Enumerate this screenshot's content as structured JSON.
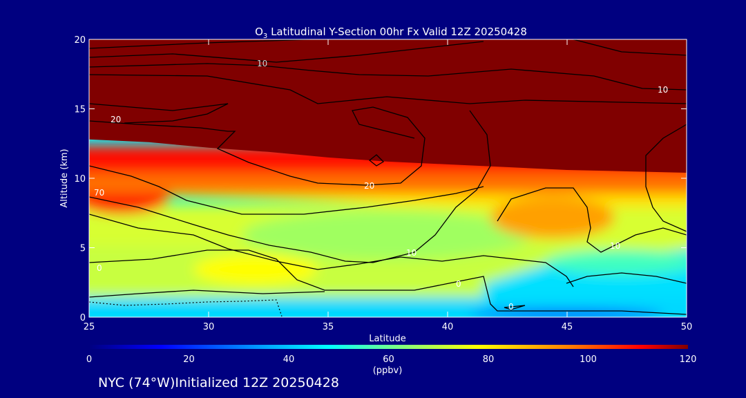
{
  "chart_data": {
    "type": "heatmap",
    "title_prefix": "O",
    "title_subscript": "3",
    "title_rest": " Latitudinal Y-Section 00hr  Fx Valid 12Z 20250428",
    "xlabel": "Latitude",
    "ylabel": "Altitude (km)",
    "xlim": [
      25,
      50
    ],
    "ylim": [
      0,
      20
    ],
    "xticks": [
      "25",
      "30",
      "35",
      "40",
      "45",
      "50"
    ],
    "yticks": [
      "0",
      "5",
      "10",
      "15",
      "20"
    ],
    "colorbar": {
      "min": 0,
      "max": 120,
      "ticks": [
        "0",
        "20",
        "40",
        "60",
        "80",
        "100",
        "120"
      ],
      "unit": "(ppbv)"
    },
    "tropopause_km": [
      12.8,
      12.6,
      12.2,
      11.9,
      11.5,
      11.2,
      11.0,
      10.8,
      10.6,
      10.5,
      10.4
    ],
    "tropopause_lat": [
      25,
      27.5,
      30,
      32.5,
      35,
      37.5,
      40,
      42.5,
      45,
      47.5,
      50
    ],
    "contour_labels": [
      "10",
      "20",
      "10",
      "70",
      "20",
      "10",
      "10",
      "0",
      "0",
      "0"
    ]
  },
  "footer": "NYC (74°W)Initialized 12Z 20250428"
}
